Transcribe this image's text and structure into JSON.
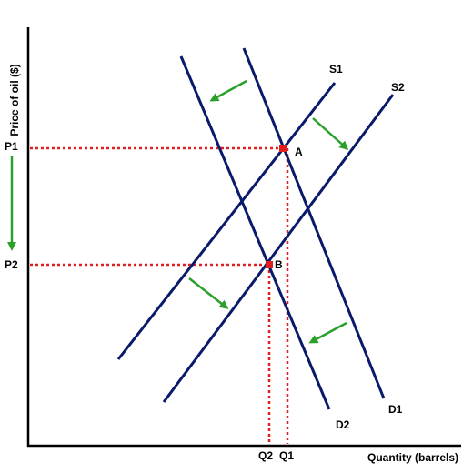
{
  "axes": {
    "y_label": "Price of oil ($)",
    "x_label": "Quantity (barrels)"
  },
  "curves": {
    "s1": "S1",
    "s2": "S2",
    "d1": "D1",
    "d2": "D2"
  },
  "points": {
    "a": "A",
    "b": "B"
  },
  "ticks": {
    "p1": "P1",
    "p2": "P2",
    "q1": "Q1",
    "q2": "Q2"
  },
  "colors": {
    "curve": "#0a1a6b",
    "guide": "#e02020",
    "arrow": "#2aa02a",
    "point": "#e02020",
    "axis": "#000000"
  }
}
